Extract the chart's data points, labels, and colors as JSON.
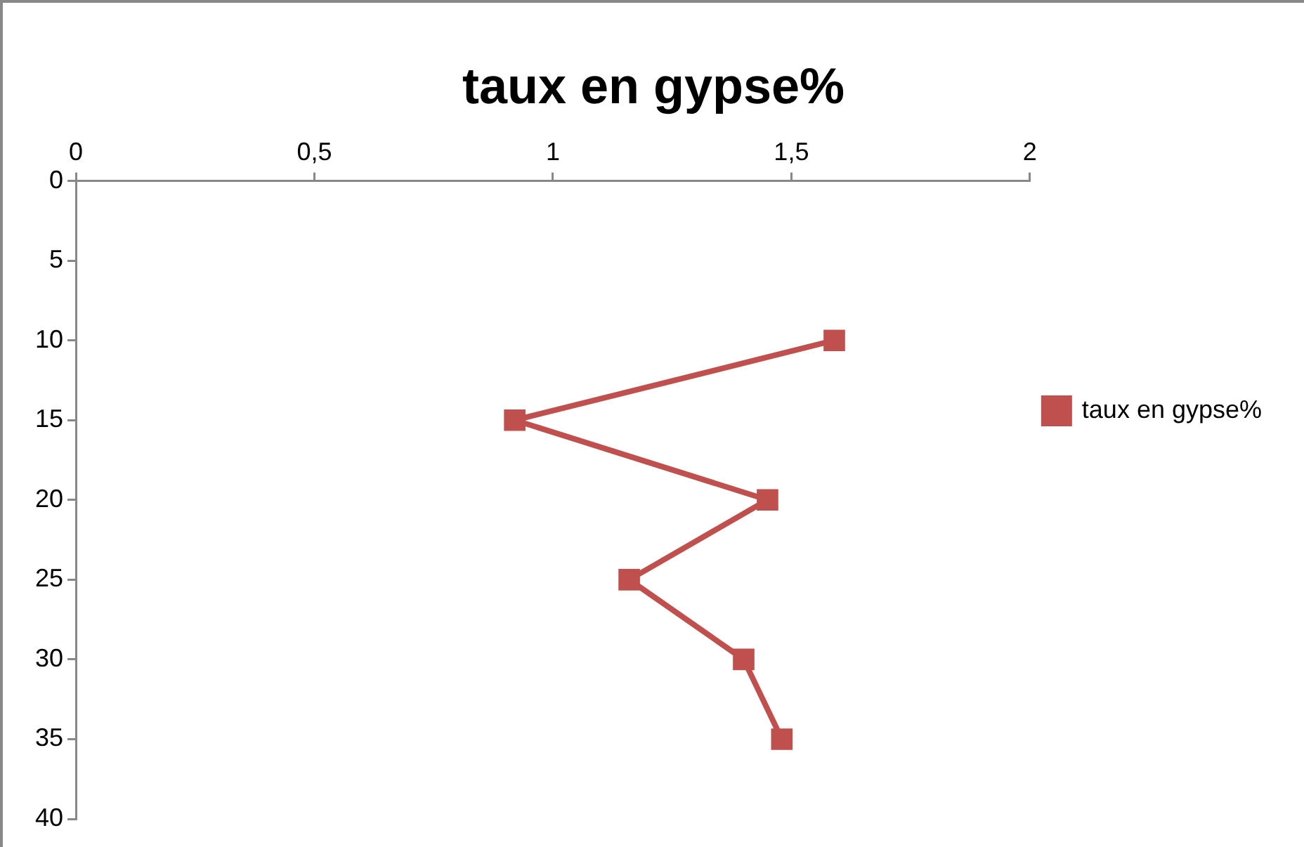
{
  "chart_data": {
    "type": "line",
    "title": "taux en gypse%",
    "series": [
      {
        "name": "taux en gypse%",
        "color": "#c0504d",
        "x": [
          1.59,
          0.92,
          1.45,
          1.16,
          1.4,
          1.48
        ],
        "values": [
          10,
          15,
          20,
          25,
          30,
          35
        ]
      }
    ],
    "xlim": [
      0,
      2
    ],
    "xticks": [
      0,
      {
        "value": 0.5,
        "label": "0,5"
      },
      1,
      {
        "value": 1.5,
        "label": "1,5"
      },
      2
    ],
    "ylim": [
      40,
      0
    ],
    "yticks": [
      0,
      5,
      10,
      15,
      20,
      25,
      30,
      35,
      40
    ],
    "grid": false,
    "legend": "right",
    "marker": "square",
    "line_style": "solid"
  }
}
